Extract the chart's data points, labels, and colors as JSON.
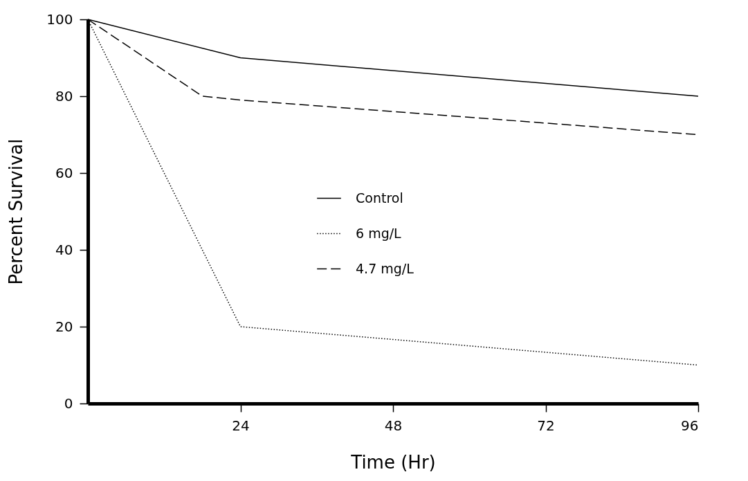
{
  "chart_data": {
    "type": "line",
    "xlabel": "Time (Hr)",
    "ylabel": "Percent Survival",
    "xlim": [
      0,
      96
    ],
    "xticks": [
      24,
      48,
      72,
      96
    ],
    "ylim": [
      0,
      100
    ],
    "yticks": [
      0,
      20,
      40,
      60,
      80,
      100
    ],
    "grid": false,
    "legend": "right",
    "marker": "none",
    "series": [
      {
        "name": "Control",
        "color": "#000000",
        "line_style": "solid",
        "x": [
          0,
          24,
          96
        ],
        "values": [
          100,
          90,
          80
        ]
      },
      {
        "name": "6 mg/L",
        "color": "#000000",
        "line_style": "dotted",
        "x": [
          0,
          24,
          96
        ],
        "values": [
          100,
          20,
          10
        ]
      },
      {
        "name": "4.7 mg/L",
        "color": "#000000",
        "line_style": "dashed",
        "x": [
          0,
          18,
          24,
          96
        ],
        "values": [
          100,
          80,
          79,
          70
        ]
      }
    ]
  }
}
